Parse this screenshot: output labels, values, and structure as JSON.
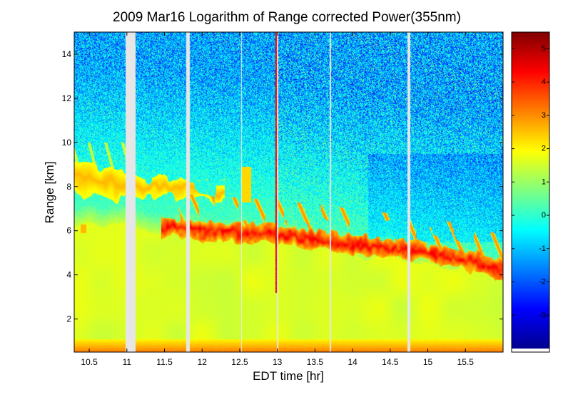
{
  "chart_data": {
    "type": "heatmap",
    "title": "2009 Mar16  Logarithm of Range corrected Power(355nm)",
    "xlabel": "EDT time [hr]",
    "ylabel": "Range [km]",
    "xlim": [
      10.3,
      16.0
    ],
    "ylim": [
      0.5,
      15.0
    ],
    "x_ticks": [
      10.5,
      11,
      11.5,
      12,
      12.5,
      13,
      13.5,
      14,
      14.5,
      15,
      15.5
    ],
    "x_tick_labels": [
      "10.5",
      "11",
      "11.5",
      "12",
      "12.5",
      "13",
      "13.5",
      "14",
      "14.5",
      "15",
      "15.5"
    ],
    "y_ticks": [
      2,
      4,
      6,
      8,
      10,
      12,
      14
    ],
    "y_tick_labels": [
      "2",
      "4",
      "6",
      "8",
      "10",
      "12",
      "14"
    ],
    "colorbar": {
      "range": [
        -4.0,
        5.5
      ],
      "ticks": [
        -3,
        -2,
        -1,
        0,
        1,
        2,
        3,
        4,
        5
      ],
      "tick_labels": [
        "-3",
        "-2",
        "-1",
        "0",
        "1",
        "2",
        "3",
        "4",
        "5"
      ],
      "colormap": "jet",
      "colors": [
        "#00008f",
        "#0000ff",
        "#00ffff",
        "#ffff00",
        "#ff0000",
        "#800000"
      ]
    },
    "data_gaps_hr": [
      [
        10.98,
        11.11
      ],
      [
        11.78,
        11.83
      ],
      [
        12.99,
        13.01
      ],
      [
        13.69,
        13.71
      ],
      [
        14.72,
        14.76
      ]
    ],
    "thin_gaps_hr": [
      12.52
    ],
    "vertical_streak_hr": 12.98,
    "layers": [
      {
        "name": "aerosol layer",
        "x": [
          11.5,
          12.0,
          12.5,
          13.0,
          13.5,
          14.0,
          14.5,
          15.0,
          15.5,
          16.0
        ],
        "range_km": [
          6.2,
          6.0,
          5.9,
          5.8,
          5.6,
          5.4,
          5.2,
          5.0,
          4.7,
          4.2
        ]
      },
      {
        "name": "upper layer",
        "x": [
          10.3,
          10.6,
          11.0,
          11.4,
          11.8,
          12.2
        ],
        "range_km": [
          8.4,
          8.2,
          8.1,
          8.0,
          7.9,
          7.8
        ]
      }
    ],
    "boundary_layer_top_km": [
      {
        "x": 10.3,
        "value": 6.3
      },
      {
        "x": 12.0,
        "value": 5.8
      },
      {
        "x": 14.0,
        "value": 5.0
      },
      {
        "x": 16.0,
        "value": 4.0
      }
    ],
    "background_levels": {
      "near_ground": 3.2,
      "boundary_layer": 1.6,
      "free_troposphere": 0.4,
      "clear_air_aloft": -1.0
    }
  }
}
